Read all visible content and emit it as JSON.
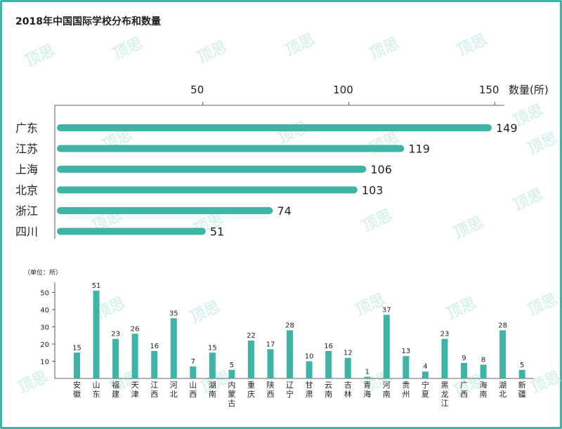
{
  "title": "2018年中国国际学校分布和数量",
  "watermark": "顶思",
  "colors": {
    "bar": "#3fb3a6",
    "frame": "#3fb3a6",
    "axis": "#333333",
    "text": "#222222"
  },
  "chart_data": [
    {
      "type": "bar",
      "orientation": "horizontal",
      "categories": [
        "广东",
        "江苏",
        "上海",
        "北京",
        "浙江",
        "四川"
      ],
      "values": [
        149,
        119,
        106,
        103,
        74,
        51
      ],
      "ticks": [
        50,
        100,
        150
      ],
      "axis_label": "数量(所)",
      "xlim": [
        0,
        150
      ],
      "data_labels": true,
      "grid": false
    },
    {
      "type": "bar",
      "orientation": "vertical",
      "unit_label": "（单位：所）",
      "categories": [
        "安徽",
        "山东",
        "福建",
        "天津",
        "江西",
        "河北",
        "山西",
        "湖南",
        "内蒙古",
        "重庆",
        "陕西",
        "辽宁",
        "甘肃",
        "云南",
        "吉林",
        "青海",
        "河南",
        "贵州",
        "宁夏",
        "黑龙江",
        "广西",
        "海南",
        "湖北",
        "新疆"
      ],
      "values": [
        15,
        51,
        23,
        26,
        16,
        35,
        7,
        15,
        5,
        22,
        17,
        28,
        10,
        16,
        12,
        1,
        37,
        13,
        4,
        23,
        9,
        8,
        28,
        5
      ],
      "ticks": [
        10,
        20,
        30,
        40,
        50
      ],
      "ylim": [
        0,
        55
      ],
      "data_labels": true,
      "grid": false
    }
  ]
}
